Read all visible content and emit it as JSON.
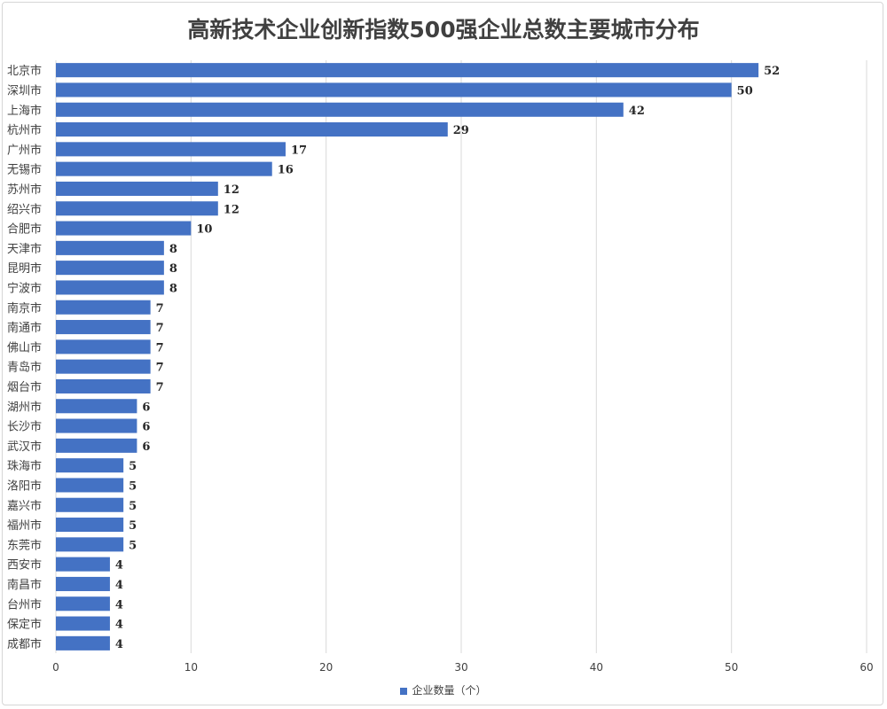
{
  "chart_data": {
    "type": "bar",
    "orientation": "horizontal",
    "title": "高新技术企业创新指数500强企业总数主要城市分布",
    "categories": [
      "北京市",
      "深圳市",
      "上海市",
      "杭州市",
      "广州市",
      "无锡市",
      "苏州市",
      "绍兴市",
      "合肥市",
      "天津市",
      "昆明市",
      "宁波市",
      "南京市",
      "南通市",
      "佛山市",
      "青岛市",
      "烟台市",
      "湖州市",
      "长沙市",
      "武汉市",
      "珠海市",
      "洛阳市",
      "嘉兴市",
      "福州市",
      "东莞市",
      "西安市",
      "南昌市",
      "台州市",
      "保定市",
      "成都市"
    ],
    "series": [
      {
        "name": "企业数量（个）",
        "values": [
          52,
          50,
          42,
          29,
          17,
          16,
          12,
          12,
          10,
          8,
          8,
          8,
          7,
          7,
          7,
          7,
          7,
          6,
          6,
          6,
          5,
          5,
          5,
          5,
          5,
          4,
          4,
          4,
          4,
          4
        ],
        "color": "#4472C4"
      }
    ],
    "xlim": [
      0,
      60
    ],
    "xticks": [
      0,
      10,
      20,
      30,
      40,
      50,
      60
    ],
    "grid": true,
    "legend_position": "bottom",
    "data_labels": true
  }
}
